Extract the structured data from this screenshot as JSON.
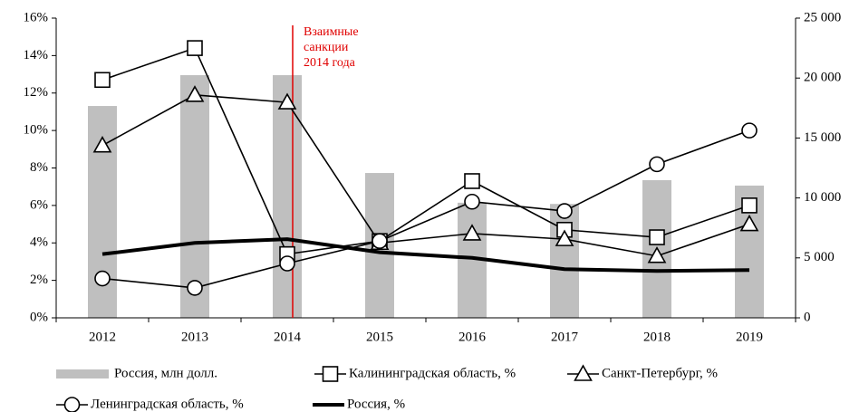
{
  "chart_data": {
    "type": "bar-line",
    "categories": [
      "2012",
      "2013",
      "2014",
      "2015",
      "2016",
      "2017",
      "2018",
      "2019"
    ],
    "ylim": [
      0,
      16
    ],
    "yticks": [
      {
        "value": 0,
        "label": "0%"
      },
      {
        "value": 2,
        "label": "2%"
      },
      {
        "value": 4,
        "label": "4%"
      },
      {
        "value": 6,
        "label": "6%"
      },
      {
        "value": 8,
        "label": "8%"
      },
      {
        "value": 10,
        "label": "10%"
      },
      {
        "value": 12,
        "label": "12%"
      },
      {
        "value": 14,
        "label": "14%"
      },
      {
        "value": 16,
        "label": "16%"
      }
    ],
    "y2lim": [
      0,
      25000
    ],
    "y2ticks": [
      0,
      {
        "value": 5000,
        "label": "5 000"
      },
      {
        "value": 10000,
        "label": "10 000"
      },
      {
        "value": 15000,
        "label": "15 000"
      },
      {
        "value": 20000,
        "label": "20 000"
      },
      {
        "value": 25000,
        "label": "25 000"
      }
    ],
    "series": [
      {
        "name": "Россия, млн долл.",
        "kind": "bar",
        "axis": "y2",
        "color": "#bfbfbf",
        "values": [
          17670,
          20240,
          20240,
          12080,
          9600,
          9500,
          11480,
          11030
        ]
      },
      {
        "name": "Калининградская область, %",
        "kind": "line",
        "marker": "square",
        "color": "#000000",
        "values": [
          12.7,
          14.4,
          3.4,
          4.1,
          7.3,
          4.7,
          4.3,
          6.0
        ]
      },
      {
        "name": "Санкт-Петербург, %",
        "kind": "line",
        "marker": "triangle",
        "color": "#000000",
        "values": [
          9.2,
          11.9,
          11.5,
          4.0,
          4.5,
          4.2,
          3.3,
          5.0
        ]
      },
      {
        "name": "Ленинградская область, %",
        "kind": "line",
        "marker": "circle",
        "color": "#000000",
        "values": [
          2.1,
          1.6,
          2.9,
          4.1,
          6.2,
          5.7,
          8.2,
          10.0
        ]
      },
      {
        "name": "Россия, %",
        "kind": "line",
        "marker": "none",
        "thick": true,
        "color": "#000000",
        "values": [
          3.4,
          4.0,
          4.2,
          3.5,
          3.2,
          2.6,
          2.5,
          2.55
        ]
      }
    ],
    "annotation": {
      "lines": [
        "Взаимные",
        "санкции",
        "2014 года"
      ],
      "category": 2,
      "color": "#e00000"
    }
  }
}
